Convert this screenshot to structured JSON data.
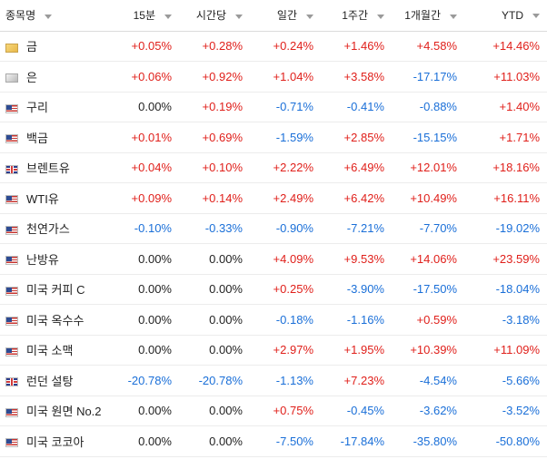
{
  "header": {
    "name": "종목명",
    "cols": [
      "15분",
      "시간당",
      "일간",
      "1주간",
      "1개월간",
      "YTD"
    ]
  },
  "rows": [
    {
      "name": "금",
      "flag": "gold",
      "vals": [
        "+0.05%",
        "+0.28%",
        "+0.24%",
        "+1.46%",
        "+4.58%",
        "+14.46%"
      ],
      "signs": [
        "pos",
        "pos",
        "pos",
        "pos",
        "pos",
        "pos"
      ]
    },
    {
      "name": "은",
      "flag": "silver",
      "vals": [
        "+0.06%",
        "+0.92%",
        "+1.04%",
        "+3.58%",
        "-17.17%",
        "+11.03%"
      ],
      "signs": [
        "pos",
        "pos",
        "pos",
        "pos",
        "neg",
        "pos"
      ]
    },
    {
      "name": "구리",
      "flag": "us",
      "vals": [
        "0.00%",
        "+0.19%",
        "-0.71%",
        "-0.41%",
        "-0.88%",
        "+1.40%"
      ],
      "signs": [
        "zero",
        "pos",
        "neg",
        "neg",
        "neg",
        "pos"
      ]
    },
    {
      "name": "백금",
      "flag": "us",
      "vals": [
        "+0.01%",
        "+0.69%",
        "-1.59%",
        "+2.85%",
        "-15.15%",
        "+1.71%"
      ],
      "signs": [
        "pos",
        "pos",
        "neg",
        "pos",
        "neg",
        "pos"
      ]
    },
    {
      "name": "브렌트유",
      "flag": "uk",
      "vals": [
        "+0.04%",
        "+0.10%",
        "+2.22%",
        "+6.49%",
        "+12.01%",
        "+18.16%"
      ],
      "signs": [
        "pos",
        "pos",
        "pos",
        "pos",
        "pos",
        "pos"
      ]
    },
    {
      "name": "WTI유",
      "flag": "us",
      "vals": [
        "+0.09%",
        "+0.14%",
        "+2.49%",
        "+6.42%",
        "+10.49%",
        "+16.11%"
      ],
      "signs": [
        "pos",
        "pos",
        "pos",
        "pos",
        "pos",
        "pos"
      ]
    },
    {
      "name": "천연가스",
      "flag": "us",
      "vals": [
        "-0.10%",
        "-0.33%",
        "-0.90%",
        "-7.21%",
        "-7.70%",
        "-19.02%"
      ],
      "signs": [
        "neg",
        "neg",
        "neg",
        "neg",
        "neg",
        "neg"
      ]
    },
    {
      "name": "난방유",
      "flag": "us",
      "vals": [
        "0.00%",
        "0.00%",
        "+4.09%",
        "+9.53%",
        "+14.06%",
        "+23.59%"
      ],
      "signs": [
        "zero",
        "zero",
        "pos",
        "pos",
        "pos",
        "pos"
      ]
    },
    {
      "name": "미국 커피 C",
      "flag": "us",
      "vals": [
        "0.00%",
        "0.00%",
        "+0.25%",
        "-3.90%",
        "-17.50%",
        "-18.04%"
      ],
      "signs": [
        "zero",
        "zero",
        "pos",
        "neg",
        "neg",
        "neg"
      ]
    },
    {
      "name": "미국 옥수수",
      "flag": "us",
      "vals": [
        "0.00%",
        "0.00%",
        "-0.18%",
        "-1.16%",
        "+0.59%",
        "-3.18%"
      ],
      "signs": [
        "zero",
        "zero",
        "neg",
        "neg",
        "pos",
        "neg"
      ]
    },
    {
      "name": "미국 소맥",
      "flag": "us",
      "vals": [
        "0.00%",
        "0.00%",
        "+2.97%",
        "+1.95%",
        "+10.39%",
        "+11.09%"
      ],
      "signs": [
        "zero",
        "zero",
        "pos",
        "pos",
        "pos",
        "pos"
      ]
    },
    {
      "name": "런던 설탕",
      "flag": "uk",
      "vals": [
        "-20.78%",
        "-20.78%",
        "-1.13%",
        "+7.23%",
        "-4.54%",
        "-5.66%"
      ],
      "signs": [
        "neg",
        "neg",
        "neg",
        "pos",
        "neg",
        "neg"
      ]
    },
    {
      "name": "미국 원면 No.2",
      "flag": "us",
      "vals": [
        "0.00%",
        "0.00%",
        "+0.75%",
        "-0.45%",
        "-3.62%",
        "-3.52%"
      ],
      "signs": [
        "zero",
        "zero",
        "pos",
        "neg",
        "neg",
        "neg"
      ]
    },
    {
      "name": "미국 코코아",
      "flag": "us",
      "vals": [
        "0.00%",
        "0.00%",
        "-7.50%",
        "-17.84%",
        "-35.80%",
        "-50.80%"
      ],
      "signs": [
        "zero",
        "zero",
        "neg",
        "neg",
        "neg",
        "neg"
      ]
    }
  ]
}
